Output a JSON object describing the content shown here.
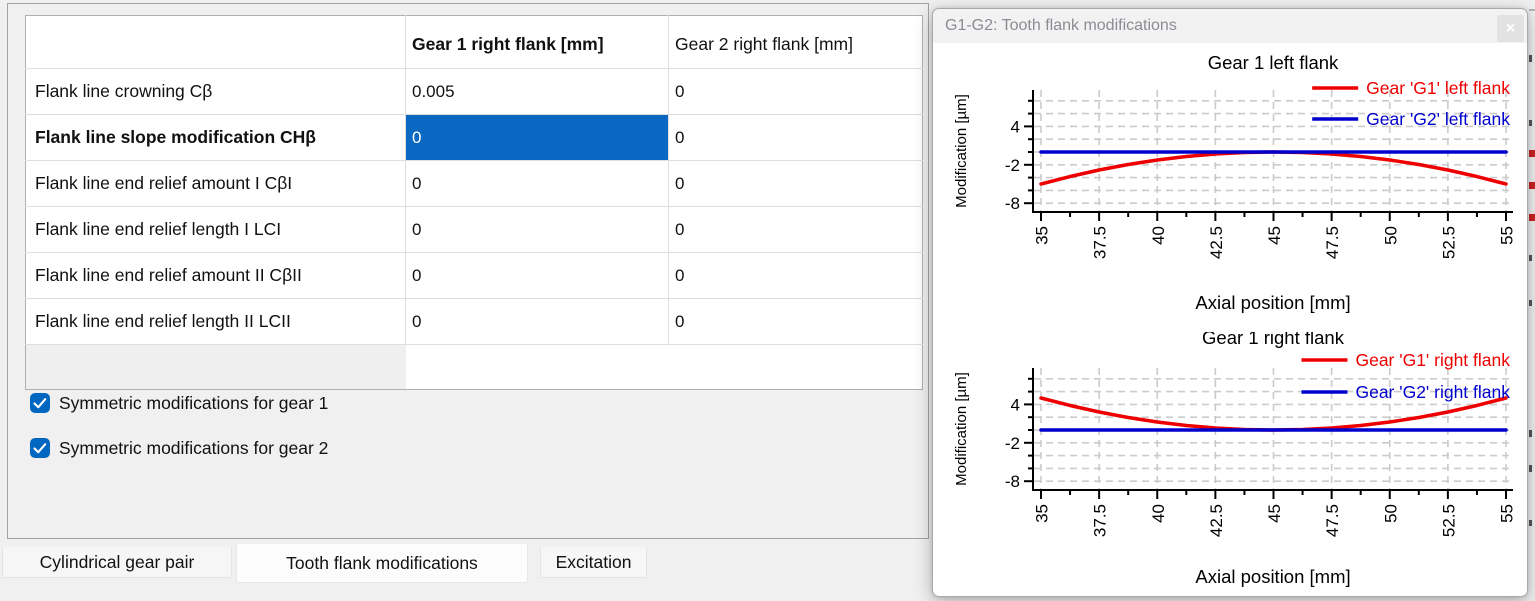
{
  "table": {
    "headers": [
      "",
      "Gear 1 right flank [mm]",
      "Gear 2 right flank [mm]"
    ],
    "rows": [
      {
        "label": "Flank line crowning Cβ",
        "g1": "0.005",
        "g2": "0",
        "bold": false,
        "selected": false
      },
      {
        "label": "Flank line slope modification CHβ",
        "g1": "0",
        "g2": "0",
        "bold": true,
        "selected": true
      },
      {
        "label": "Flank line end relief amount I CβI",
        "g1": "0",
        "g2": "0",
        "bold": false,
        "selected": false
      },
      {
        "label": "Flank line end relief length I LCI",
        "g1": "0",
        "g2": "0",
        "bold": false,
        "selected": false
      },
      {
        "label": "Flank line end relief amount II CβII",
        "g1": "0",
        "g2": "0",
        "bold": false,
        "selected": false
      },
      {
        "label": "Flank line end relief length II LCII",
        "g1": "0",
        "g2": "0",
        "bold": false,
        "selected": false
      }
    ]
  },
  "checkboxes": [
    {
      "label": "Symmetric modifications for gear 1",
      "checked": true
    },
    {
      "label": "Symmetric modifications for gear 2",
      "checked": true
    }
  ],
  "tabs": [
    {
      "label": "Cylindrical gear pair",
      "active": false
    },
    {
      "label": "Tooth flank modifications",
      "active": true
    },
    {
      "label": "Excitation",
      "active": false
    }
  ],
  "floating_window": {
    "title": "G1-G2: Tooth flank modifications",
    "close_icon": "×"
  },
  "colors": {
    "selected_cell": "#0a68c2",
    "checkbox_accent": "#0067c0",
    "series_g1_red": "#ee0000",
    "series_g2_blue": "#0000cd",
    "grid": "#cbcbcb"
  },
  "chart_data": [
    {
      "type": "line",
      "title": "Gear 1 left flank",
      "xlabel": "Axial position [mm]",
      "ylabel": "Modification [µm]",
      "xlim": [
        35,
        55
      ],
      "ylim": [
        -9.5,
        9.7
      ],
      "grid": "dashed",
      "legend_position": "top-right",
      "x_major_ticks": [
        35,
        37.5,
        40,
        42.5,
        45,
        47.5,
        50,
        52.5,
        55
      ],
      "x_minor_ticks": [
        36.25,
        38.75,
        41.25,
        43.75,
        46.25,
        48.75,
        51.25,
        53.75
      ],
      "y_major_ticks": [
        4,
        -2,
        -8
      ],
      "y_grid_ticks": [
        8,
        6,
        4,
        2,
        0,
        -2,
        -4,
        -6,
        -8
      ],
      "series": [
        {
          "name": "Gear 'G1' left flank",
          "color": "#ee0000",
          "points": [
            [
              35,
              -5
            ],
            [
              36.25,
              -3.83
            ],
            [
              37.5,
              -2.81
            ],
            [
              38.75,
              -1.95
            ],
            [
              40,
              -1.25
            ],
            [
              41.25,
              -0.7
            ],
            [
              42.5,
              -0.31
            ],
            [
              43.75,
              -0.08
            ],
            [
              45,
              0
            ],
            [
              46.25,
              -0.08
            ],
            [
              47.5,
              -0.31
            ],
            [
              48.75,
              -0.7
            ],
            [
              50,
              -1.25
            ],
            [
              51.25,
              -1.95
            ],
            [
              52.5,
              -2.81
            ],
            [
              53.75,
              -3.83
            ],
            [
              55,
              -5
            ]
          ]
        },
        {
          "name": "Gear 'G2' left flank",
          "color": "#0000cd",
          "points": [
            [
              35,
              0
            ],
            [
              55,
              0
            ]
          ]
        }
      ]
    },
    {
      "type": "line",
      "title": "Gear 1 right flank",
      "xlabel": "Axial position [mm]",
      "ylabel": "Modification [µm]",
      "xlim": [
        35,
        55
      ],
      "ylim": [
        -9.5,
        9.7
      ],
      "grid": "dashed",
      "legend_position": "top-right",
      "x_major_ticks": [
        35,
        37.5,
        40,
        42.5,
        45,
        47.5,
        50,
        52.5,
        55
      ],
      "x_minor_ticks": [
        36.25,
        38.75,
        41.25,
        43.75,
        46.25,
        48.75,
        51.25,
        53.75
      ],
      "y_major_ticks": [
        4,
        -2,
        -8
      ],
      "y_grid_ticks": [
        8,
        6,
        4,
        2,
        0,
        -2,
        -4,
        -6,
        -8
      ],
      "series": [
        {
          "name": "Gear 'G1' right flank",
          "color": "#ee0000",
          "points": [
            [
              35,
              5
            ],
            [
              36.25,
              3.83
            ],
            [
              37.5,
              2.81
            ],
            [
              38.75,
              1.95
            ],
            [
              40,
              1.25
            ],
            [
              41.25,
              0.7
            ],
            [
              42.5,
              0.31
            ],
            [
              43.75,
              0.08
            ],
            [
              45,
              0
            ],
            [
              46.25,
              0.08
            ],
            [
              47.5,
              0.31
            ],
            [
              48.75,
              0.7
            ],
            [
              50,
              1.25
            ],
            [
              51.25,
              1.95
            ],
            [
              52.5,
              2.81
            ],
            [
              53.75,
              3.83
            ],
            [
              55,
              5
            ]
          ]
        },
        {
          "name": "Gear 'G2' right flank",
          "color": "#0000cd",
          "points": [
            [
              35,
              0
            ],
            [
              55,
              0
            ]
          ]
        }
      ]
    }
  ]
}
